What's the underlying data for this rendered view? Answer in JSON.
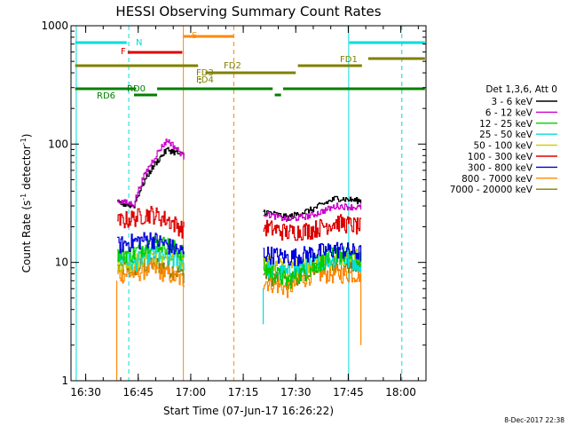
{
  "chart_data": {
    "type": "line",
    "title": "HESSI Observing Summary Count Rates",
    "xlabel": "Start Time (07-Jun-17 16:26:22)",
    "ylabel_main": "Count Rate (s",
    "ylabel_sup1": "-1",
    "ylabel_mid": " detector",
    "ylabel_sup2": "-1",
    "ylabel_end": ")",
    "y_scale": "log",
    "ylim": [
      1,
      1000
    ],
    "xlim_minutes": [
      16.43,
      18.12
    ],
    "x_ticks": [
      {
        "label": "16:30",
        "value": 16.5
      },
      {
        "label": "16:45",
        "value": 16.75
      },
      {
        "label": "17:00",
        "value": 17.0
      },
      {
        "label": "17:15",
        "value": 17.25
      },
      {
        "label": "17:30",
        "value": 17.5
      },
      {
        "label": "17:45",
        "value": 17.75
      },
      {
        "label": "18:00",
        "value": 18.0
      }
    ],
    "y_ticks": [
      {
        "label": "1",
        "value": 1
      },
      {
        "label": "10",
        "value": 10
      },
      {
        "label": "100",
        "value": 100
      },
      {
        "label": "1000",
        "value": 1000
      }
    ],
    "legend_title": "Det 1,3,6, Att 0",
    "legend_placement": "right",
    "series": [
      {
        "name": "3 - 6 keV",
        "color": "#000000",
        "seg1": [
          32,
          30,
          60,
          90,
          80
        ],
        "seg2": [
          27,
          24,
          28,
          35,
          33
        ]
      },
      {
        "name": "6 - 12 keV",
        "color": "#cc00cc",
        "seg1": [
          33,
          31,
          68,
          108,
          78
        ],
        "seg2": [
          26,
          23,
          25,
          30,
          29
        ]
      },
      {
        "name": "12 - 25 keV",
        "color": "#00cc00",
        "seg1": [
          12,
          12,
          15,
          14,
          12
        ],
        "seg2": [
          9,
          7,
          9,
          12,
          11
        ]
      },
      {
        "name": "25 - 50 keV",
        "color": "#00dddd",
        "seg1": [
          11,
          10,
          12,
          11,
          10
        ],
        "seg2": [
          9,
          8,
          10,
          11,
          10
        ]
      },
      {
        "name": "50 - 100 keV",
        "color": "#cccc00",
        "seg1": [
          10,
          10,
          12,
          11,
          10
        ],
        "seg2": [
          10,
          9,
          10,
          11,
          11
        ]
      },
      {
        "name": "100 - 300 keV",
        "color": "#dd0000",
        "seg1": [
          22,
          24,
          26,
          23,
          19
        ],
        "seg2": [
          20,
          18,
          19,
          22,
          20
        ]
      },
      {
        "name": "300 - 800 keV",
        "color": "#0000dd",
        "seg1": [
          14,
          15,
          16,
          14,
          12
        ],
        "seg2": [
          12,
          11,
          12,
          13,
          12
        ]
      },
      {
        "name": "800 - 7000 keV",
        "color": "#ff8800",
        "seg1": [
          8,
          8,
          9,
          8,
          7
        ],
        "seg2": [
          7,
          6,
          8,
          8,
          8
        ]
      },
      {
        "name": "7000 - 20000 keV",
        "color": "#808000",
        "seg1": [
          9,
          9,
          10,
          9,
          8
        ],
        "seg2": [
          8,
          7,
          9,
          10,
          9
        ]
      }
    ],
    "segment1_range": [
      16.65,
      16.965
    ],
    "segment2_range": [
      17.345,
      17.81
    ],
    "annotations": [
      {
        "label": "N",
        "color": "#00dddd"
      },
      {
        "label": "F",
        "color": "#dd0000"
      },
      {
        "label": "S",
        "color": "#ff8800"
      },
      {
        "label": "FD2",
        "color": "#808000"
      },
      {
        "label": "FD3",
        "color": "#808000"
      },
      {
        "label": "FD4",
        "color": "#808000"
      },
      {
        "label": "FD1",
        "color": "#808000"
      },
      {
        "label": "RD0",
        "color": "#008000"
      },
      {
        "label": "RD6",
        "color": "#008000"
      }
    ],
    "footer_stamp": "8-Dec-2017 22:38"
  }
}
